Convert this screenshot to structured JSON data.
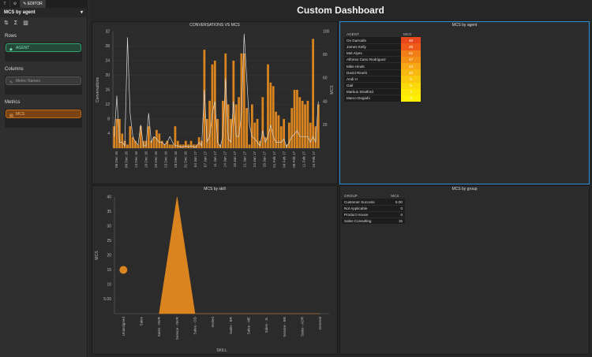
{
  "editor": {
    "tabs": [
      "T",
      "⚙",
      "EDITOR"
    ],
    "widget_title": "MCS by agent",
    "rows_label": "Rows",
    "rows_pill": "AGENT",
    "columns_label": "Columns",
    "columns_placeholder": "Metric Names",
    "metrics_label": "Metrics",
    "metrics_pill": "MCS"
  },
  "dashboard": {
    "title": "Custom Dashboard"
  },
  "colors": {
    "bar": "#d9841f",
    "accent": "#2a8fd0",
    "bg": "#262626"
  },
  "panels": {
    "conv_title": "CONVERSATIONS VS MCS",
    "agent_title": "MCS by agent",
    "skill_title": "MCS by skill",
    "group_title": "MCS by group"
  },
  "chart_data": [
    {
      "type": "bar",
      "title": "CONVERSATIONS VS MCS",
      "ylabel": "Conversations",
      "y2label": "MCS",
      "ylim": [
        0,
        32
      ],
      "y2lim": [
        0,
        100
      ],
      "yticks": [
        4,
        8,
        12,
        16,
        20,
        24,
        28,
        32
      ],
      "y2ticks": [
        20,
        40,
        60,
        80,
        100
      ],
      "x_tick_labels": [
        "06 Dec 16",
        "09 Dec 16",
        "13 Dec 16",
        "16 Dec 16",
        "20 Dec 16",
        "23 Dec 16",
        "28 Dec 16",
        "31 Dec 16",
        "04 Jan 17",
        "07 Jan 17",
        "11 Jan 17",
        "14 Jan 17",
        "18 Jan 17",
        "21 Jan 17",
        "24 Jan 17",
        "28 Jan 17",
        "01 Feb 17",
        "04 Feb 17",
        "08 Feb 17",
        "11 Feb 17",
        "15 Feb 17"
      ],
      "series": [
        {
          "values": [
            6,
            8,
            8,
            4,
            2,
            1,
            6,
            3,
            2,
            1,
            6,
            2,
            2,
            6,
            2,
            3,
            5,
            4,
            2,
            1,
            2,
            1,
            1,
            6,
            2,
            1,
            1,
            2,
            1,
            2,
            1,
            1,
            3,
            2,
            27,
            8,
            13,
            23,
            24,
            8,
            1,
            13,
            26,
            12,
            8,
            24,
            12,
            14,
            26,
            26,
            11,
            1,
            12,
            7,
            8,
            2,
            14,
            3,
            23,
            18,
            17,
            10,
            9,
            6,
            8,
            1,
            7,
            11,
            16,
            16,
            14,
            13,
            12,
            13,
            7,
            30,
            6,
            12
          ]
        },
        {
          "values": [
            10,
            45,
            5,
            5,
            2,
            95,
            30,
            10,
            5,
            3,
            20,
            2,
            2,
            30,
            5,
            10,
            8,
            5,
            5,
            3,
            5,
            10,
            5,
            2,
            2,
            1,
            1,
            2,
            1,
            2,
            1,
            1,
            5,
            2,
            50,
            5,
            10,
            30,
            40,
            5,
            1,
            10,
            60,
            8,
            5,
            40,
            10,
            10,
            30,
            98,
            60,
            20,
            10,
            8,
            5,
            2,
            15,
            5,
            10,
            20,
            10,
            5,
            5,
            5,
            8,
            1,
            5,
            10,
            12,
            15,
            10,
            10,
            10,
            10,
            5,
            10,
            5,
            40
          ]
        }
      ]
    },
    {
      "type": "area",
      "title": "MCS by skill",
      "xlabel": "SKILL",
      "ylabel": "MCS",
      "ylim": [
        0,
        40
      ],
      "yticks": [
        "5.00",
        "10",
        "15",
        "20",
        "25",
        "30",
        "35",
        "40"
      ],
      "categories": [
        "Unassigned",
        "Sales",
        "Sales - NVR",
        "Service - NVR",
        "Sales - OD",
        "Invited",
        "Sales - BR",
        "Sales - ME",
        "Sales - JL",
        "Service - BR",
        "Sales - ADR",
        "General"
      ],
      "values": [
        15,
        null,
        0,
        40,
        0,
        0,
        0,
        0,
        0,
        0,
        0,
        0
      ]
    }
  ],
  "agent_table": {
    "headers": [
      "AGENT",
      "MCS"
    ],
    "rows": [
      {
        "name": "Ox Garrodin",
        "mcs": "40",
        "color": "#e8471b"
      },
      {
        "name": "James Kelly",
        "mcs": "29",
        "color": "#ee5b19"
      },
      {
        "name": "Mel Alyes",
        "mcs": "21",
        "color": "#f07f18"
      },
      {
        "name": "Alfonso Cano Rodriguez",
        "mcs": "17",
        "color": "#f48f16"
      },
      {
        "name": "Mike Hinds",
        "mcs": "13",
        "color": "#f7a814"
      },
      {
        "name": "David Rinehi",
        "mcs": "10",
        "color": "#f8b811"
      },
      {
        "name": "Andi H",
        "mcs": "8",
        "color": "#fac90e"
      },
      {
        "name": "Gail",
        "mcs": "5",
        "color": "#fcd90a"
      },
      {
        "name": "Markus Stratford",
        "mcs": "4",
        "color": "#fde708"
      },
      {
        "name": "Marco Degiahi",
        "mcs": "3",
        "color": "#fef005"
      }
    ]
  },
  "group_table": {
    "headers": [
      "GROUP",
      "MCS"
    ],
    "rows": [
      {
        "group": "Customer Success",
        "mcs": "5.00"
      },
      {
        "group": "Not Applicable",
        "mcs": "0"
      },
      {
        "group": "Product House",
        "mcs": "0"
      },
      {
        "group": "Sales Consulting",
        "mcs": "15"
      }
    ]
  }
}
